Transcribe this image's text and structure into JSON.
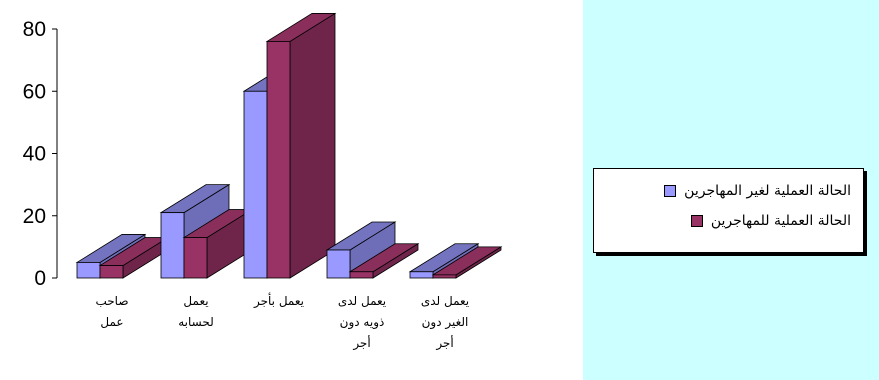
{
  "chart_data": {
    "type": "bar",
    "style": "3d-clustered",
    "categories": [
      [
        "صاحب",
        "عمل"
      ],
      [
        "يعمل",
        "لحسابه"
      ],
      [
        "يعمل بأجر"
      ],
      [
        "يعمل لدى",
        "ذويه دون",
        "أجر"
      ],
      [
        "يعمل لدى",
        "الغير دون",
        "أجر"
      ]
    ],
    "series": [
      {
        "name": "الحالة العملية لغير المهاجرين",
        "color": "#9999ff",
        "values": [
          5,
          21,
          60,
          9,
          2
        ]
      },
      {
        "name": "الحالة العملية للمهاجرين",
        "color": "#993366",
        "values": [
          4,
          13,
          76,
          2,
          1
        ]
      }
    ],
    "ylim": [
      0,
      80
    ],
    "yticks": [
      0,
      20,
      40,
      60,
      80
    ],
    "grid": false,
    "legend_position": "right"
  }
}
